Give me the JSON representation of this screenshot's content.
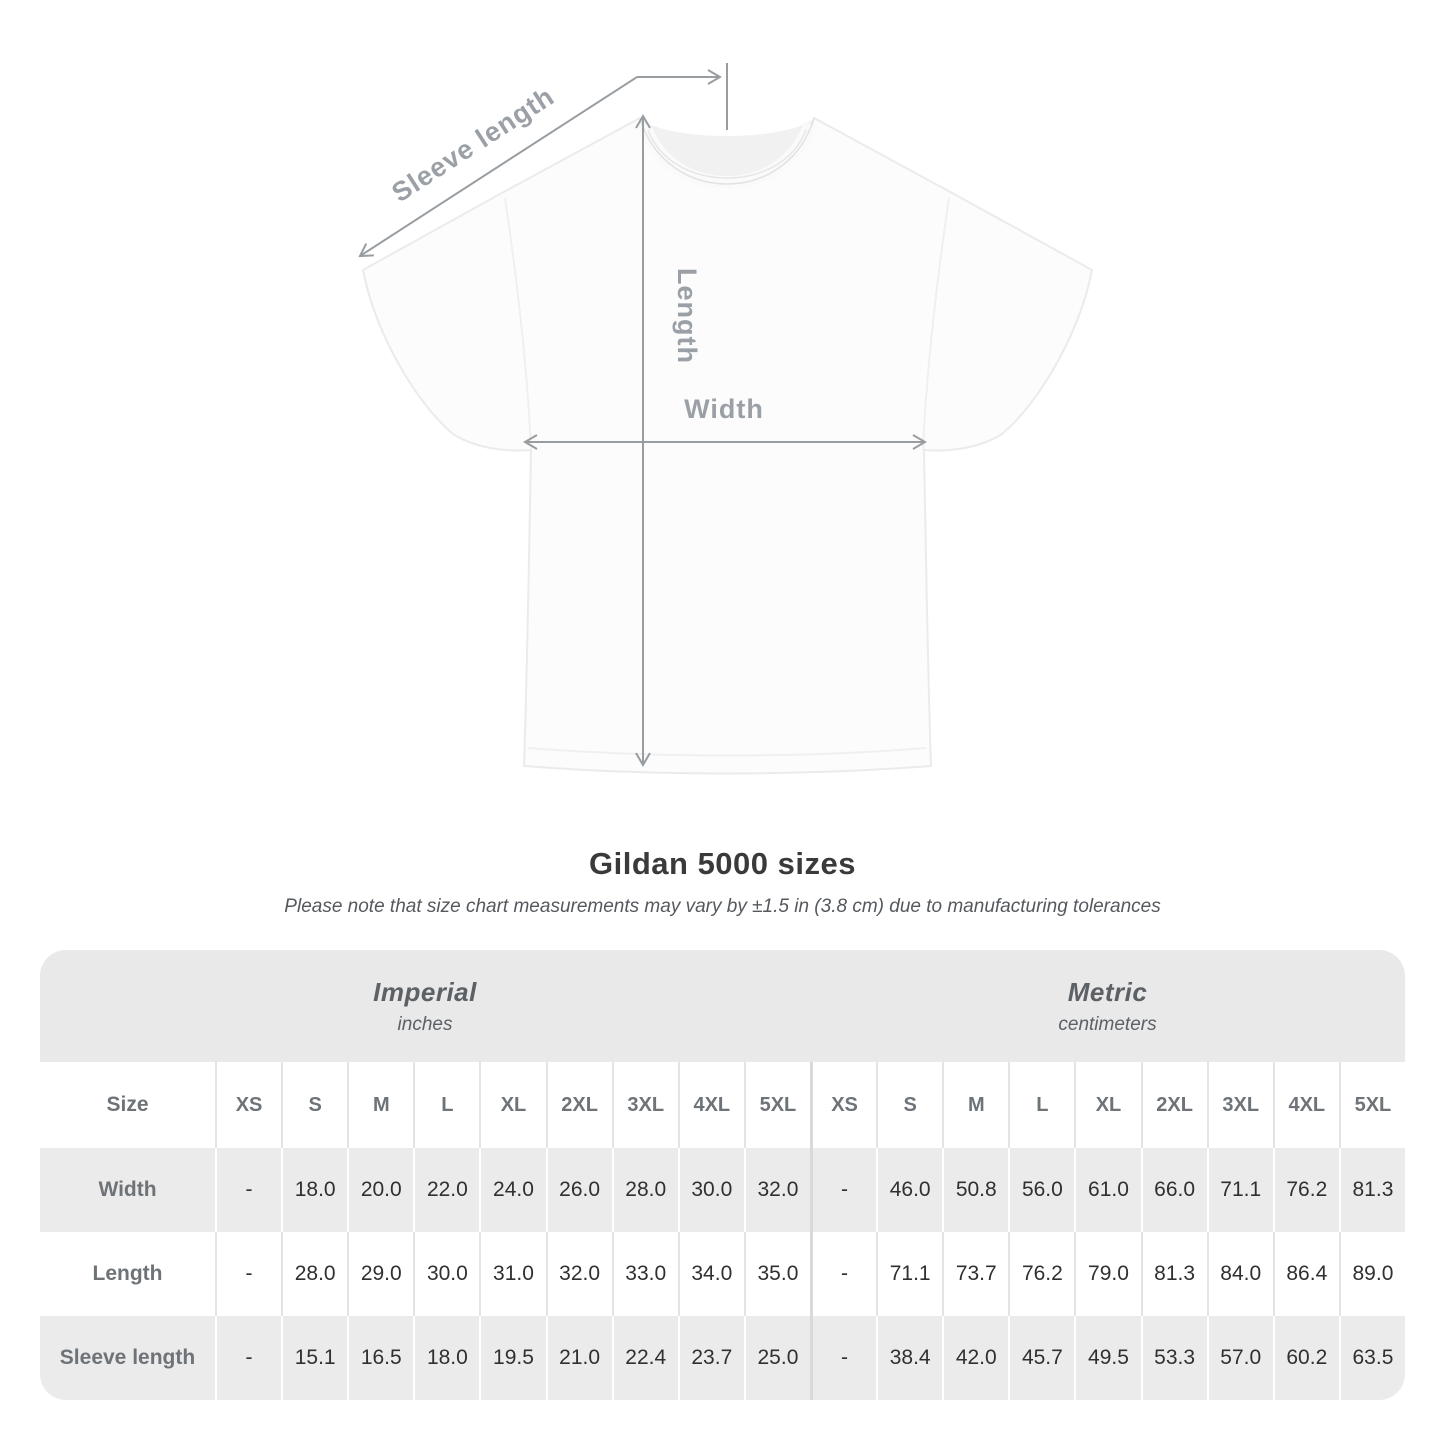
{
  "title": "Gildan 5000 sizes",
  "subtitle": "Please note that size chart measurements may vary by ±1.5 in (3.8 cm) due to manufacturing tolerances",
  "diagram": {
    "labels": {
      "sleeve_length": "Sleeve length",
      "length": "Length",
      "width": "Width"
    },
    "colors": {
      "arrow": "#989da2",
      "label": "#9aa0a6",
      "shirt_fill": "#fcfcfc",
      "shirt_outline": "#ebebeb"
    }
  },
  "table": {
    "unit_headers": [
      {
        "label": "Imperial",
        "sublabel": "inches"
      },
      {
        "label": "Metric",
        "sublabel": "centimeters"
      }
    ],
    "size_column_label": "Size",
    "sizes": [
      "XS",
      "S",
      "M",
      "L",
      "XL",
      "2XL",
      "3XL",
      "4XL",
      "5XL"
    ],
    "rows": [
      {
        "label": "Width",
        "imperial": [
          "-",
          "18.0",
          "20.0",
          "22.0",
          "24.0",
          "26.0",
          "28.0",
          "30.0",
          "32.0"
        ],
        "metric": [
          "-",
          "46.0",
          "50.8",
          "56.0",
          "61.0",
          "66.0",
          "71.1",
          "76.2",
          "81.3"
        ]
      },
      {
        "label": "Length",
        "imperial": [
          "-",
          "28.0",
          "29.0",
          "30.0",
          "31.0",
          "32.0",
          "33.0",
          "34.0",
          "35.0"
        ],
        "metric": [
          "-",
          "71.1",
          "73.7",
          "76.2",
          "79.0",
          "81.3",
          "84.0",
          "86.4",
          "89.0"
        ]
      },
      {
        "label": "Sleeve length",
        "imperial": [
          "-",
          "15.1",
          "16.5",
          "18.0",
          "19.5",
          "21.0",
          "22.4",
          "23.7",
          "25.0"
        ],
        "metric": [
          "-",
          "38.4",
          "42.0",
          "45.7",
          "49.5",
          "53.3",
          "57.0",
          "60.2",
          "63.5"
        ]
      }
    ],
    "colors": {
      "band_bg": "#e9e9e9",
      "stripe_bg": "#ebebeb",
      "separator": "#e4e4e4",
      "half_divider": "#d9d9d9"
    }
  }
}
